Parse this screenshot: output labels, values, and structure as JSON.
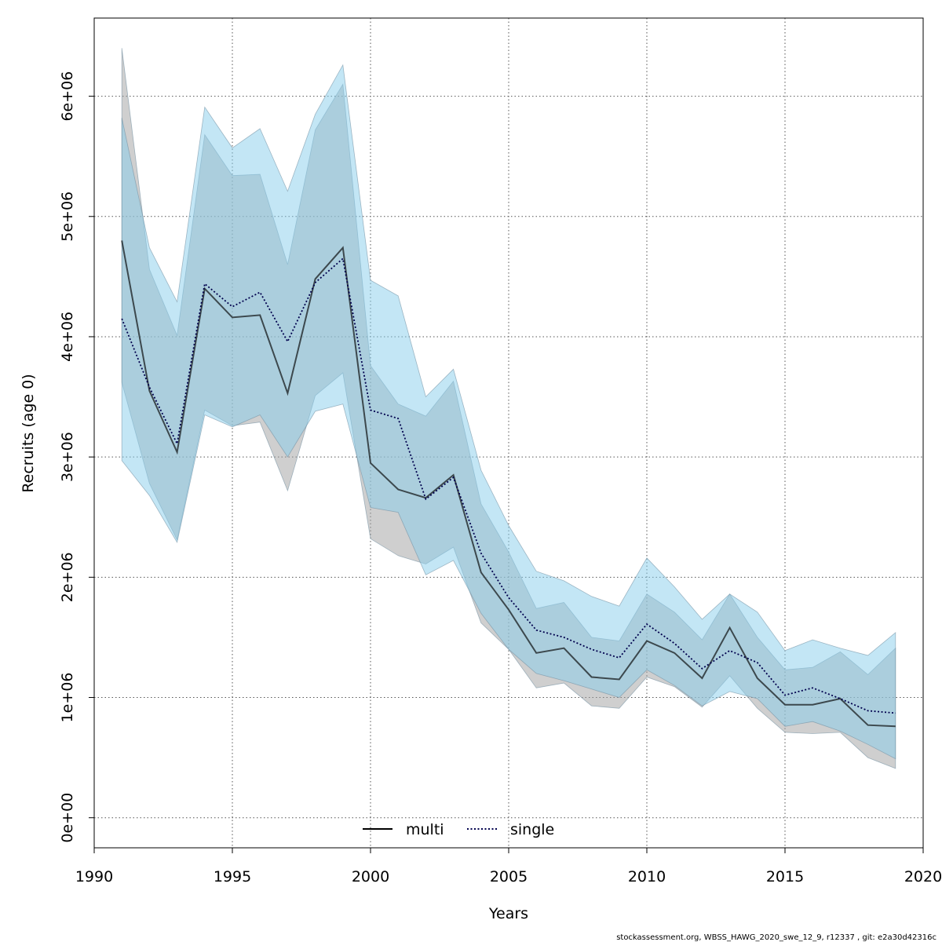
{
  "chart_data": {
    "type": "area",
    "xlabel": "Years",
    "ylabel": "Recruits (age 0)",
    "xlim": [
      1990,
      2020
    ],
    "ylim": [
      -250000,
      6650000
    ],
    "x_ticks": [
      1990,
      1995,
      2000,
      2005,
      2010,
      2015,
      2020
    ],
    "y_ticks": [
      0,
      1000000,
      2000000,
      3000000,
      4000000,
      5000000,
      6000000
    ],
    "y_tick_labels": [
      "0e+00",
      "1e+06",
      "2e+06",
      "3e+06",
      "4e+06",
      "5e+06",
      "6e+06"
    ],
    "grid": true,
    "legend": {
      "position": "bottom-center",
      "entries": [
        {
          "label": "multi",
          "series": "multi"
        },
        {
          "label": "single",
          "series": "single"
        }
      ]
    },
    "x": [
      1991,
      1992,
      1993,
      1994,
      1995,
      1996,
      1997,
      1998,
      1999,
      2000,
      2001,
      2002,
      2003,
      2004,
      2005,
      2006,
      2007,
      2008,
      2009,
      2010,
      2011,
      2012,
      2013,
      2014,
      2015,
      2016,
      2017,
      2018,
      2019
    ],
    "series": [
      {
        "name": "multi",
        "line_color": "#000000",
        "line_style": "solid",
        "band_color": "#a0a0a0",
        "values": [
          4800000,
          3550000,
          3040000,
          4400000,
          4160000,
          4180000,
          3530000,
          4480000,
          4740000,
          2950000,
          2730000,
          2660000,
          2850000,
          2040000,
          1730000,
          1370000,
          1410000,
          1170000,
          1150000,
          1470000,
          1370000,
          1160000,
          1580000,
          1160000,
          940000,
          940000,
          990000,
          770000,
          760000
        ],
        "lower": [
          3620000,
          2780000,
          2310000,
          3390000,
          3260000,
          3290000,
          2720000,
          3510000,
          3700000,
          2320000,
          2180000,
          2110000,
          2250000,
          1620000,
          1400000,
          1080000,
          1120000,
          930000,
          910000,
          1170000,
          1090000,
          920000,
          1180000,
          910000,
          710000,
          700000,
          710000,
          500000,
          410000
        ],
        "upper": [
          6400000,
          4560000,
          4010000,
          5680000,
          5340000,
          5350000,
          4600000,
          5720000,
          6100000,
          3760000,
          3440000,
          3340000,
          3630000,
          2610000,
          2210000,
          1740000,
          1790000,
          1500000,
          1470000,
          1860000,
          1710000,
          1480000,
          1860000,
          1500000,
          1230000,
          1250000,
          1380000,
          1190000,
          1410000
        ]
      },
      {
        "name": "single",
        "line_color": "#00004d",
        "line_style": "dotted",
        "band_color": "#87ceeb",
        "values": [
          4150000,
          3580000,
          3110000,
          4440000,
          4250000,
          4370000,
          3960000,
          4450000,
          4650000,
          3390000,
          3320000,
          2650000,
          2830000,
          2200000,
          1830000,
          1560000,
          1500000,
          1400000,
          1330000,
          1610000,
          1450000,
          1240000,
          1390000,
          1290000,
          1020000,
          1080000,
          990000,
          890000,
          870000
        ],
        "lower": [
          2970000,
          2680000,
          2290000,
          3350000,
          3250000,
          3350000,
          3000000,
          3380000,
          3440000,
          2580000,
          2540000,
          2020000,
          2140000,
          1700000,
          1400000,
          1200000,
          1140000,
          1070000,
          1000000,
          1230000,
          1100000,
          930000,
          1050000,
          990000,
          760000,
          800000,
          720000,
          610000,
          490000
        ],
        "upper": [
          5820000,
          4740000,
          4290000,
          5910000,
          5570000,
          5730000,
          5210000,
          5850000,
          6260000,
          4470000,
          4340000,
          3500000,
          3730000,
          2890000,
          2430000,
          2050000,
          1970000,
          1840000,
          1760000,
          2160000,
          1920000,
          1650000,
          1860000,
          1710000,
          1390000,
          1480000,
          1410000,
          1350000,
          1540000
        ]
      }
    ]
  },
  "footer": {
    "credit": "stockassessment.org, WBSS_HAWG_2020_swe_12_9, r12337 , git: e2a30d42316c"
  }
}
